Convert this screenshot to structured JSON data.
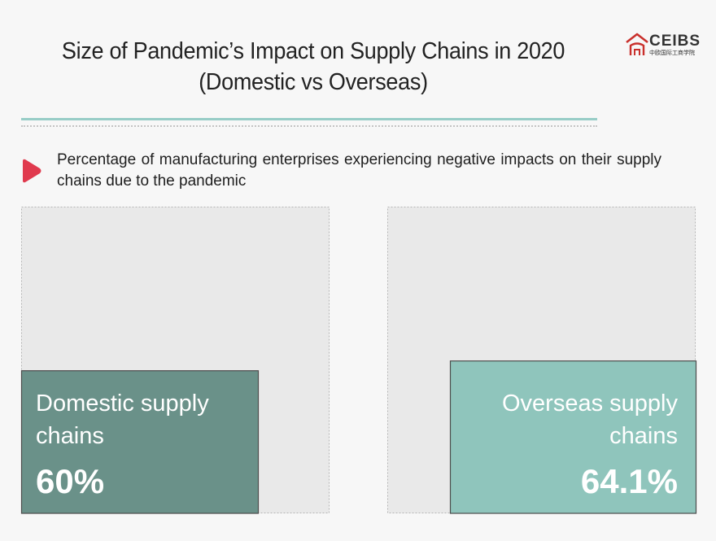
{
  "header": {
    "title_line1": "Size of Pandemic’s Impact on Supply Chains in 2020",
    "title_line2": "(Domestic vs Overseas)",
    "logo_text": "CEIBS",
    "logo_subtext": "中欧国际工商学院",
    "logo_icon": "ceibs-roof-icon"
  },
  "subtitle": "Percentage of manufacturing enterprises experiencing negative impacts on their supply chains due to the pandemic",
  "bullet_icon": "play-triangle-icon",
  "colors": {
    "domestic": "#6a9189",
    "overseas": "#8fc5bc",
    "backdrop": "#e9e9e9",
    "accent": "#e03a4e",
    "rule": "#98cdc7"
  },
  "chart_data": {
    "type": "bar",
    "title": "Size of Pandemic’s Impact on Supply Chains in 2020 (Domestic vs Overseas)",
    "categories": [
      "Domestic supply chains",
      "Overseas supply chains"
    ],
    "label_lines": [
      [
        "Domestic supply",
        "chains"
      ],
      [
        "Overseas supply",
        "chains"
      ]
    ],
    "values": [
      60,
      64.1
    ],
    "value_labels": [
      "60%",
      "64.1%"
    ],
    "unit": "%",
    "ylim": [
      0,
      100
    ]
  }
}
